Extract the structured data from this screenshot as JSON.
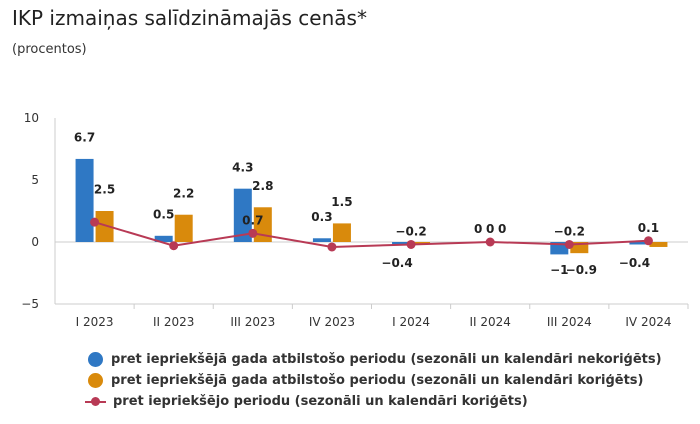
{
  "title": "IKP izmaiņas salīdzināmajās cenās*",
  "subtitle": "(procentos)",
  "colors": {
    "blue": "#2f78c4",
    "orange": "#d98a0c",
    "red": "#b83a55",
    "axis": "#cccccc"
  },
  "chart_data": {
    "type": "bar",
    "categories": [
      "I 2023",
      "II 2023",
      "III 2023",
      "IV 2023",
      "I 2024",
      "II 2024",
      "III 2024",
      "IV 2024"
    ],
    "ylim": [
      -5,
      10
    ],
    "yticks": [
      -5,
      0,
      5,
      10
    ],
    "ytick_labels": [
      "−5",
      "0",
      "5",
      "10"
    ],
    "grid": false,
    "legend_position": "bottom",
    "series": [
      {
        "name": "pret iepriekšējā gada atbilstošo periodu (sezonāli un kalendāri nekoriģēts)",
        "type": "bar",
        "color": "#2f78c4",
        "values": [
          6.7,
          0.5,
          4.3,
          0.3,
          -0.2,
          0,
          -1,
          -0.2
        ],
        "labels": [
          "6.7",
          "0.5",
          "4.3",
          "0.3",
          "",
          "0",
          "−1",
          ""
        ]
      },
      {
        "name": "pret iepriekšējā gada atbilstošo periodu (sezonāli un kalendāri koriģēts)",
        "type": "bar",
        "color": "#d98a0c",
        "values": [
          2.5,
          2.2,
          2.8,
          1.5,
          -0.2,
          0,
          -0.9,
          -0.4
        ],
        "labels": [
          "2.5",
          "2.2",
          "2.8",
          "1.5",
          "",
          "0",
          "−0.9",
          ""
        ]
      },
      {
        "name": "pret iepriekšējo periodu (sezonāli un kalendāri koriģēts)",
        "type": "line",
        "color": "#b83a55",
        "values": [
          1.6,
          -0.3,
          0.7,
          -0.4,
          -0.2,
          0,
          -0.2,
          0.1
        ],
        "labels": [
          "",
          "",
          "0.7",
          "",
          "−0.2",
          "0",
          "−0.2",
          "0.1"
        ]
      }
    ],
    "extra_labels": [
      "−0.4",
      "−0.4"
    ]
  }
}
